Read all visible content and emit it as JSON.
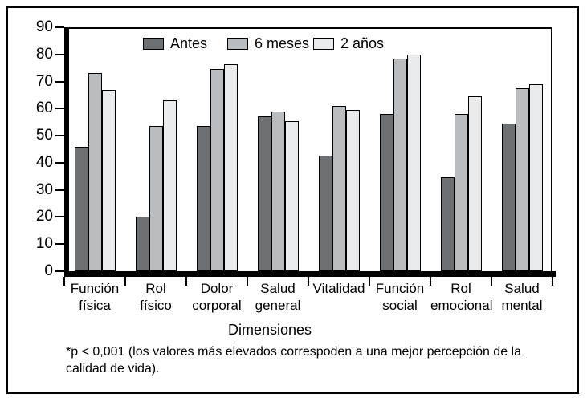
{
  "chart_data": {
    "type": "bar",
    "title": "",
    "xlabel": "Dimensiones",
    "ylabel": "",
    "ylim": [
      0,
      90
    ],
    "yticks": [
      0,
      10,
      20,
      30,
      40,
      50,
      60,
      70,
      80,
      90
    ],
    "grid": false,
    "legend_position": "top-inside",
    "categories": [
      "Función física",
      "Rol físico",
      "Dolor corporal",
      "Salud general",
      "Vitalidad",
      "Función social",
      "Rol emocional",
      "Salud mental"
    ],
    "category_label_lines": [
      [
        "Función",
        "física"
      ],
      [
        "Rol",
        "físico"
      ],
      [
        "Dolor",
        "corporal"
      ],
      [
        "Salud",
        "general"
      ],
      [
        "Vitalidad"
      ],
      [
        "Función",
        "social"
      ],
      [
        "Rol",
        "emocional"
      ],
      [
        "Salud",
        "mental"
      ]
    ],
    "series": [
      {
        "name": "Antes",
        "color": "#6e7174",
        "values": [
          46,
          20,
          53.5,
          57,
          42.5,
          58,
          34.5,
          54.5
        ]
      },
      {
        "name": "6 meses",
        "color": "#b9bdc0",
        "values": [
          73,
          53.5,
          74.5,
          59,
          61,
          78.5,
          58,
          67.5
        ]
      },
      {
        "name": "2 años",
        "color": "#e9ebec",
        "values": [
          67,
          63,
          76.5,
          55.5,
          59.5,
          80,
          64.5,
          69
        ]
      }
    ],
    "footnote_lines": [
      "*p < 0,001 (los valores más elevados correspoden a una mejor percepción de la",
      "calidad de vida)."
    ]
  },
  "colors": {
    "axis": "#000000",
    "background": "#ffffff",
    "bar_antes": "#6e7174",
    "bar_6_meses": "#b9bdc0",
    "bar_2_anos": "#e9ebec"
  }
}
